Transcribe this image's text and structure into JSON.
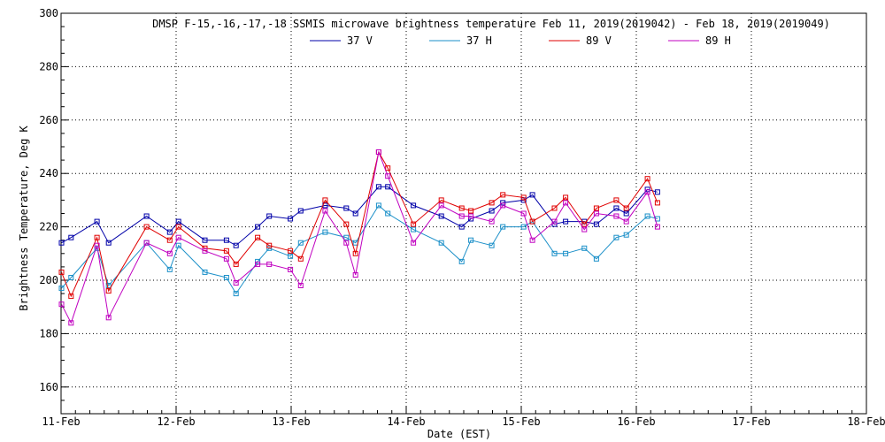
{
  "chart_data": {
    "type": "line",
    "title": "DMSP F-15,-16,-17,-18 SSMIS microwave brightness temperature Feb 11, 2019(2019042) - Feb 18, 2019(2019049)",
    "xlabel": "Date (EST)",
    "ylabel": "Brightness Temperature, Deg K",
    "xlim": [
      "2019-02-11 00:00",
      "2019-02-18 00:00"
    ],
    "ylim": [
      150,
      300
    ],
    "x_ticks": [
      "11-Feb",
      "12-Feb",
      "13-Feb",
      "14-Feb",
      "15-Feb",
      "16-Feb",
      "17-Feb",
      "18-Feb"
    ],
    "y_ticks": [
      "160",
      "180",
      "200",
      "220",
      "240",
      "260",
      "280",
      "300"
    ],
    "grid": true,
    "legend_position": "top-center",
    "series": [
      {
        "name": "37 V",
        "color": "#0000a8",
        "points": [
          [
            "2019-02-11 00:05",
            214
          ],
          [
            "2019-02-11 02:05",
            216
          ],
          [
            "2019-02-11 07:30",
            222
          ],
          [
            "2019-02-11 09:55",
            214
          ],
          [
            "2019-02-11 17:50",
            224
          ],
          [
            "2019-02-11 22:40",
            218
          ],
          [
            "2019-02-12 00:30",
            222
          ],
          [
            "2019-02-12 06:00",
            215
          ],
          [
            "2019-02-12 10:30",
            215
          ],
          [
            "2019-02-12 12:30",
            213
          ],
          [
            "2019-02-12 17:00",
            220
          ],
          [
            "2019-02-12 19:25",
            224
          ],
          [
            "2019-02-12 23:50",
            223
          ],
          [
            "2019-02-13 02:00",
            226
          ],
          [
            "2019-02-13 07:05",
            228
          ],
          [
            "2019-02-13 11:30",
            227
          ],
          [
            "2019-02-13 13:25",
            225
          ],
          [
            "2019-02-13 18:15",
            235
          ],
          [
            "2019-02-13 20:10",
            235
          ],
          [
            "2019-02-14 01:30",
            228
          ],
          [
            "2019-02-14 07:20",
            224
          ],
          [
            "2019-02-14 11:35",
            220
          ],
          [
            "2019-02-14 13:30",
            223
          ],
          [
            "2019-02-14 17:50",
            226
          ],
          [
            "2019-02-14 20:10",
            229
          ],
          [
            "2019-02-15 00:30",
            230
          ],
          [
            "2019-02-15 02:20",
            232
          ],
          [
            "2019-02-15 06:55",
            221
          ],
          [
            "2019-02-15 09:15",
            222
          ],
          [
            "2019-02-15 13:10",
            222
          ],
          [
            "2019-02-15 15:40",
            221
          ],
          [
            "2019-02-15 19:50",
            227
          ],
          [
            "2019-02-15 21:55",
            225
          ],
          [
            "2019-02-16 02:20",
            234
          ],
          [
            "2019-02-16 04:25",
            233
          ]
        ]
      },
      {
        "name": "37 H",
        "color": "#1a8fc8",
        "points": [
          [
            "2019-02-11 00:05",
            197
          ],
          [
            "2019-02-11 02:05",
            201
          ],
          [
            "2019-02-11 07:30",
            212
          ],
          [
            "2019-02-11 09:55",
            198
          ],
          [
            "2019-02-11 17:50",
            214
          ],
          [
            "2019-02-11 22:40",
            204
          ],
          [
            "2019-02-12 00:30",
            213
          ],
          [
            "2019-02-12 06:00",
            203
          ],
          [
            "2019-02-12 10:30",
            201
          ],
          [
            "2019-02-12 12:30",
            195
          ],
          [
            "2019-02-12 17:00",
            207
          ],
          [
            "2019-02-12 19:25",
            212
          ],
          [
            "2019-02-12 23:50",
            209
          ],
          [
            "2019-02-13 02:00",
            214
          ],
          [
            "2019-02-13 07:05",
            218
          ],
          [
            "2019-02-13 11:30",
            216
          ],
          [
            "2019-02-13 13:25",
            214
          ],
          [
            "2019-02-13 18:15",
            228
          ],
          [
            "2019-02-13 20:10",
            225
          ],
          [
            "2019-02-14 01:30",
            219
          ],
          [
            "2019-02-14 07:20",
            214
          ],
          [
            "2019-02-14 11:35",
            207
          ],
          [
            "2019-02-14 13:30",
            215
          ],
          [
            "2019-02-14 17:50",
            213
          ],
          [
            "2019-02-14 20:10",
            220
          ],
          [
            "2019-02-15 00:30",
            220
          ],
          [
            "2019-02-15 02:20",
            222
          ],
          [
            "2019-02-15 06:55",
            210
          ],
          [
            "2019-02-15 09:15",
            210
          ],
          [
            "2019-02-15 13:10",
            212
          ],
          [
            "2019-02-15 15:40",
            208
          ],
          [
            "2019-02-15 19:50",
            216
          ],
          [
            "2019-02-15 21:55",
            217
          ],
          [
            "2019-02-16 02:20",
            224
          ],
          [
            "2019-02-16 04:25",
            223
          ]
        ]
      },
      {
        "name": "89 V",
        "color": "#e00000",
        "points": [
          [
            "2019-02-11 00:05",
            203
          ],
          [
            "2019-02-11 02:05",
            194
          ],
          [
            "2019-02-11 07:30",
            216
          ],
          [
            "2019-02-11 09:55",
            196
          ],
          [
            "2019-02-11 17:50",
            220
          ],
          [
            "2019-02-11 22:40",
            215
          ],
          [
            "2019-02-12 00:30",
            220
          ],
          [
            "2019-02-12 06:00",
            212
          ],
          [
            "2019-02-12 10:30",
            211
          ],
          [
            "2019-02-12 12:30",
            206
          ],
          [
            "2019-02-12 17:00",
            216
          ],
          [
            "2019-02-12 19:25",
            213
          ],
          [
            "2019-02-12 23:50",
            211
          ],
          [
            "2019-02-13 02:00",
            208
          ],
          [
            "2019-02-13 07:05",
            230
          ],
          [
            "2019-02-13 11:30",
            221
          ],
          [
            "2019-02-13 13:25",
            210
          ],
          [
            "2019-02-13 18:15",
            248
          ],
          [
            "2019-02-13 20:10",
            242
          ],
          [
            "2019-02-14 01:30",
            221
          ],
          [
            "2019-02-14 07:20",
            230
          ],
          [
            "2019-02-14 11:35",
            227
          ],
          [
            "2019-02-14 13:30",
            226
          ],
          [
            "2019-02-14 17:50",
            229
          ],
          [
            "2019-02-14 20:10",
            232
          ],
          [
            "2019-02-15 00:30",
            231
          ],
          [
            "2019-02-15 02:20",
            222
          ],
          [
            "2019-02-15 06:55",
            227
          ],
          [
            "2019-02-15 09:15",
            231
          ],
          [
            "2019-02-15 13:10",
            221
          ],
          [
            "2019-02-15 15:40",
            227
          ],
          [
            "2019-02-15 19:50",
            230
          ],
          [
            "2019-02-15 21:55",
            227
          ],
          [
            "2019-02-16 02:20",
            238
          ],
          [
            "2019-02-16 04:25",
            229
          ]
        ]
      },
      {
        "name": "89 H",
        "color": "#c000c0",
        "points": [
          [
            "2019-02-11 00:05",
            191
          ],
          [
            "2019-02-11 02:05",
            184
          ],
          [
            "2019-02-11 07:30",
            213
          ],
          [
            "2019-02-11 09:55",
            186
          ],
          [
            "2019-02-11 17:50",
            214
          ],
          [
            "2019-02-11 22:40",
            210
          ],
          [
            "2019-02-12 00:30",
            216
          ],
          [
            "2019-02-12 06:00",
            211
          ],
          [
            "2019-02-12 10:30",
            208
          ],
          [
            "2019-02-12 12:30",
            199
          ],
          [
            "2019-02-12 17:00",
            206
          ],
          [
            "2019-02-12 19:25",
            206
          ],
          [
            "2019-02-12 23:50",
            204
          ],
          [
            "2019-02-13 02:00",
            198
          ],
          [
            "2019-02-13 07:05",
            226
          ],
          [
            "2019-02-13 11:30",
            214
          ],
          [
            "2019-02-13 13:25",
            202
          ],
          [
            "2019-02-13 18:15",
            248
          ],
          [
            "2019-02-13 20:10",
            239
          ],
          [
            "2019-02-14 01:30",
            214
          ],
          [
            "2019-02-14 07:20",
            228
          ],
          [
            "2019-02-14 11:35",
            224
          ],
          [
            "2019-02-14 13:30",
            224
          ],
          [
            "2019-02-14 17:50",
            222
          ],
          [
            "2019-02-14 20:10",
            228
          ],
          [
            "2019-02-15 00:30",
            225
          ],
          [
            "2019-02-15 02:20",
            215
          ],
          [
            "2019-02-15 06:55",
            222
          ],
          [
            "2019-02-15 09:15",
            229
          ],
          [
            "2019-02-15 13:10",
            219
          ],
          [
            "2019-02-15 15:40",
            225
          ],
          [
            "2019-02-15 19:50",
            224
          ],
          [
            "2019-02-15 21:55",
            222
          ],
          [
            "2019-02-16 02:20",
            233
          ],
          [
            "2019-02-16 04:25",
            220
          ]
        ]
      }
    ]
  }
}
